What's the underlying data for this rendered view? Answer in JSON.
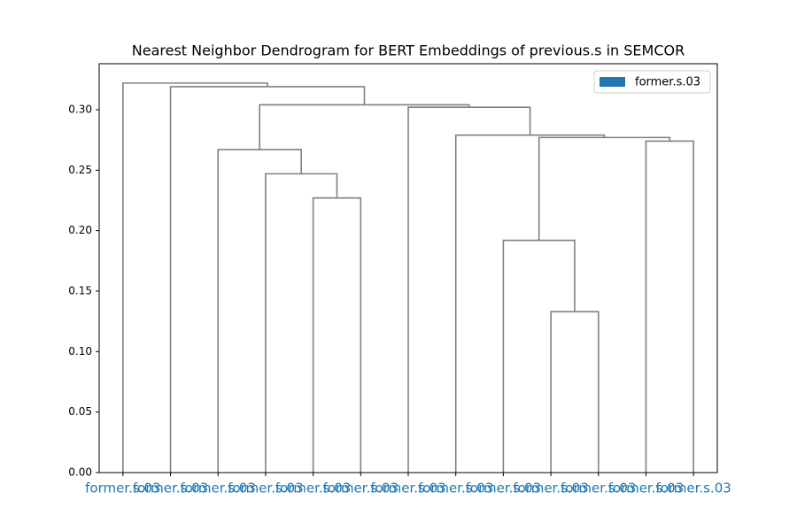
{
  "chart_data": {
    "type": "dendrogram",
    "title": "Nearest Neighbor Dendrogram for BERT Embeddings of previous.s in SEMCOR",
    "categories": [
      "former.s.03",
      "former.s.03",
      "former.s.03",
      "former.s.03",
      "former.s.03",
      "former.s.03",
      "former.s.03",
      "former.s.03",
      "former.s.03",
      "former.s.03",
      "former.s.03",
      "former.s.03",
      "former.s.03"
    ],
    "label_color": "#1f77b4",
    "color": "#808080",
    "links": [
      {
        "x": [
          95,
          95,
          105,
          105
        ],
        "y": [
          0,
          0.133,
          0.133,
          0
        ]
      },
      {
        "x": [
          85,
          85,
          100,
          100
        ],
        "y": [
          0,
          0.192,
          0.192,
          0.133
        ]
      },
      {
        "x": [
          115,
          115,
          125,
          125
        ],
        "y": [
          0,
          0.274,
          0.274,
          0
        ]
      },
      {
        "x": [
          92.5,
          92.5,
          120,
          120
        ],
        "y": [
          0.192,
          0.277,
          0.277,
          0.274
        ]
      },
      {
        "x": [
          75,
          75,
          106.25,
          106.25
        ],
        "y": [
          0,
          0.279,
          0.279,
          0.277
        ]
      },
      {
        "x": [
          65,
          65,
          90.625,
          90.625
        ],
        "y": [
          0,
          0.302,
          0.302,
          0.279
        ]
      },
      {
        "x": [
          45,
          45,
          55,
          55
        ],
        "y": [
          0,
          0.227,
          0.227,
          0
        ]
      },
      {
        "x": [
          35,
          35,
          50,
          50
        ],
        "y": [
          0,
          0.247,
          0.247,
          0.227
        ]
      },
      {
        "x": [
          25,
          25,
          42.5,
          42.5
        ],
        "y": [
          0,
          0.267,
          0.267,
          0.247
        ]
      },
      {
        "x": [
          33.75,
          33.75,
          77.8,
          77.8
        ],
        "y": [
          0.267,
          0.304,
          0.304,
          0.302
        ]
      },
      {
        "x": [
          15,
          15,
          55.78,
          55.78
        ],
        "y": [
          0,
          0.319,
          0.319,
          0.304
        ]
      },
      {
        "x": [
          5,
          5,
          35.39,
          35.39
        ],
        "y": [
          0,
          0.322,
          0.322,
          0.319
        ]
      }
    ],
    "xlim": [
      0,
      130
    ],
    "ylim": [
      0,
      0.338
    ],
    "yticks": [
      {
        "value": 0,
        "label": "0.00"
      },
      {
        "value": 0.05,
        "label": "0.05"
      },
      {
        "value": 0.1,
        "label": "0.10"
      },
      {
        "value": 0.15,
        "label": "0.15"
      },
      {
        "value": 0.2,
        "label": "0.20"
      },
      {
        "value": 0.25,
        "label": "0.25"
      },
      {
        "value": 0.3,
        "label": "0.30"
      }
    ],
    "legend": {
      "name": "former.s.03",
      "color": "#1f77b4",
      "loc": "upper right"
    }
  }
}
